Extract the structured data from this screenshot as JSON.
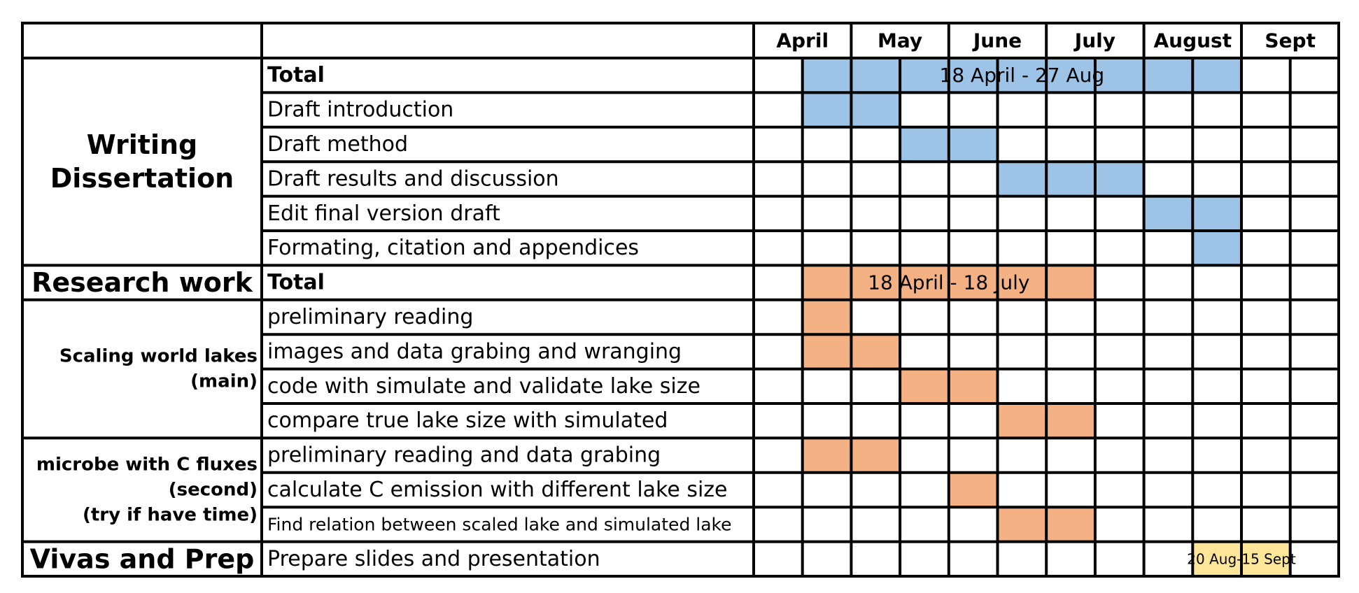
{
  "chart_data": {
    "type": "gantt",
    "months": [
      "April",
      "May",
      "June",
      "July",
      "August",
      "Sept"
    ],
    "colors": {
      "writing": "#9dc3e6",
      "research": "#f4b183",
      "vivas": "#ffe699",
      "grid": "#000000"
    },
    "groups": [
      {
        "label": "Writing Dissertation",
        "rows": 6,
        "style": "big"
      },
      {
        "label": "Research work",
        "rows": 1,
        "style": "big"
      },
      {
        "label": "Scaling world lakes (main)",
        "rows": 4,
        "style": "small"
      },
      {
        "label": "microbe with C fluxes (second) (try if have time)",
        "rows": 3,
        "style": "small"
      },
      {
        "label": "Vivas and Prep",
        "rows": 1,
        "style": "big"
      }
    ],
    "tasks": [
      {
        "label": "Total",
        "bold": true,
        "start": 1,
        "end": 10,
        "color": "writing",
        "bar_label": "18 April - 27 Aug"
      },
      {
        "label": "Draft introduction",
        "start": 1,
        "end": 3,
        "color": "writing"
      },
      {
        "label": "Draft method",
        "start": 3,
        "end": 5,
        "color": "writing"
      },
      {
        "label": "Draft results and discussion",
        "start": 5,
        "end": 8,
        "color": "writing"
      },
      {
        "label": "Edit final version draft",
        "start": 8,
        "end": 10,
        "color": "writing"
      },
      {
        "label": "Formating, citation and appendices",
        "start": 9,
        "end": 10,
        "color": "writing"
      },
      {
        "label": "Total",
        "bold": true,
        "start": 1,
        "end": 7,
        "color": "research",
        "bar_label": "18 April - 18 July"
      },
      {
        "label": "preliminary reading",
        "start": 1,
        "end": 2,
        "color": "research"
      },
      {
        "label": "images and data grabing and wranging",
        "start": 1,
        "end": 3,
        "color": "research"
      },
      {
        "label": "code with simulate and validate lake size",
        "start": 3,
        "end": 5,
        "color": "research"
      },
      {
        "label": "compare true lake size with simulated",
        "start": 5,
        "end": 7,
        "color": "research"
      },
      {
        "label": "preliminary reading and data grabing",
        "start": 1,
        "end": 3,
        "color": "research"
      },
      {
        "label": "calculate C emission with different lake size",
        "start": 4,
        "end": 5,
        "color": "research"
      },
      {
        "label": "Find relation between scaled lake and simulated lake",
        "small": true,
        "start": 5,
        "end": 7,
        "color": "research"
      },
      {
        "label": "Prepare slides and presentation",
        "start": 9,
        "end": 11,
        "color": "vivas",
        "bar_label": "20 Aug-15 Sept"
      }
    ]
  }
}
